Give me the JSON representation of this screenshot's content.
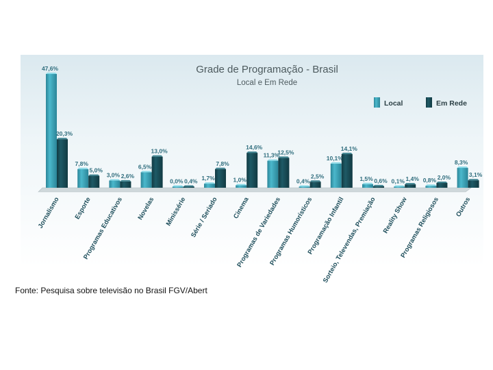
{
  "colors": {
    "local": "#4bb8cc",
    "local_dark": "#2b8598",
    "rede": "#1e5a66",
    "rede_dark": "#123a42",
    "label": "#2f6d7d",
    "title": "#4d5a5e",
    "axis_text": "#1f4f5c"
  },
  "source": "Fonte: Pesquisa sobre televisão no Brasil FGV/Abert",
  "chart_data": {
    "type": "bar",
    "title": "Grade de Programação - Brasil",
    "subtitle": "Local e Em Rede",
    "legend_position": "top-right",
    "ylim": [
      0,
      50
    ],
    "categories": [
      "Jornalismo",
      "Esporte",
      "Programas Educativos",
      "Novelas",
      "Minissérie",
      "Série / Seriado",
      "Cinema",
      "Programas de Variedades",
      "Programas Humorísticos",
      "Programação Infantil",
      "Sorteio, Televendas, Premiação",
      "Reality Show",
      "Programas Religiosos",
      "Outros"
    ],
    "series": [
      {
        "name": "Local",
        "values": [
          47.6,
          7.8,
          3.0,
          6.5,
          0.0,
          1.7,
          1.0,
          11.3,
          0.4,
          10.1,
          1.5,
          0.1,
          0.8,
          8.3
        ],
        "labels": [
          "47,6%",
          "7,8%",
          "3,0%",
          "6,5%",
          "0,0%",
          "1,7%",
          "1,0%",
          "11,3%",
          "0,4%",
          "10,1%",
          "1,5%",
          "0,1%",
          "0,8%",
          "8,3%"
        ]
      },
      {
        "name": "Em Rede",
        "values": [
          20.3,
          5.0,
          2.6,
          13.0,
          0.4,
          7.8,
          14.6,
          12.5,
          2.5,
          14.1,
          0.6,
          1.4,
          2.0,
          3.1
        ],
        "labels": [
          "20,3%",
          "5,0%",
          "2,6%",
          "13,0%",
          "0,4%",
          "7,8%",
          "14,6%",
          "12,5%",
          "2,5%",
          "14,1%",
          "0,6%",
          "1,4%",
          "2,0%",
          "3,1%"
        ]
      }
    ]
  }
}
